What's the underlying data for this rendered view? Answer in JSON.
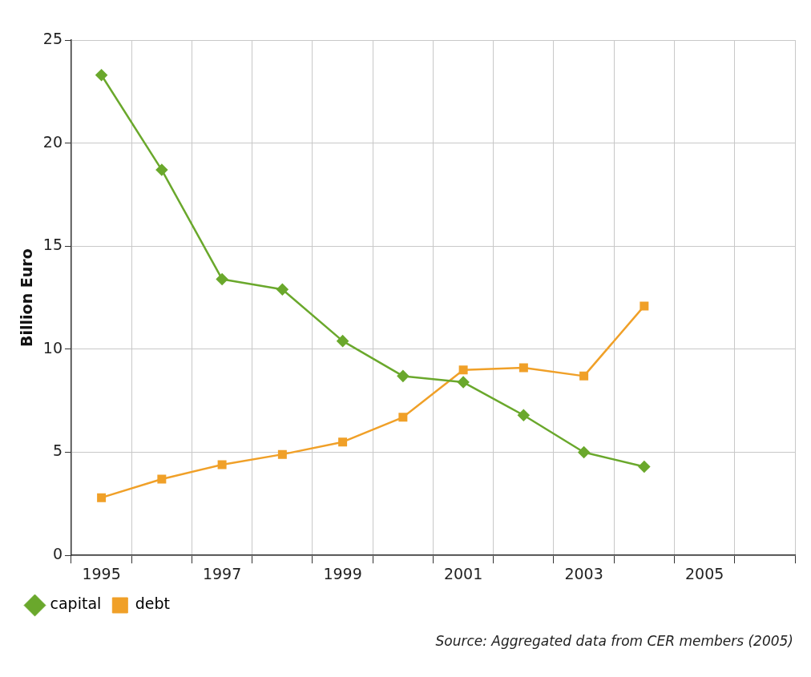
{
  "chart_data": {
    "type": "line",
    "ylabel": "Billion Euro",
    "categories": [
      "1995",
      null,
      "1997",
      null,
      "1999",
      null,
      "2001",
      null,
      "2003",
      null,
      "2005",
      null
    ],
    "series": [
      {
        "name": "capital",
        "color": "#6aa82c",
        "marker": "diamond",
        "values": [
          23.3,
          18.7,
          13.4,
          12.9,
          10.4,
          8.7,
          8.4,
          6.8,
          5.0,
          4.3,
          null,
          null
        ]
      },
      {
        "name": "debt",
        "color": "#f0a028",
        "marker": "square",
        "values": [
          2.8,
          3.7,
          4.4,
          4.9,
          5.5,
          6.7,
          9.0,
          9.1,
          8.7,
          12.1,
          null,
          null
        ]
      }
    ],
    "ylim": [
      0,
      25
    ],
    "yticks": [
      0,
      5,
      10,
      15,
      20,
      25
    ],
    "grid": true,
    "legend": "bottom left",
    "line_style": "solid",
    "annotations": [
      "Source: Aggregated data from CER members (2005)"
    ]
  }
}
